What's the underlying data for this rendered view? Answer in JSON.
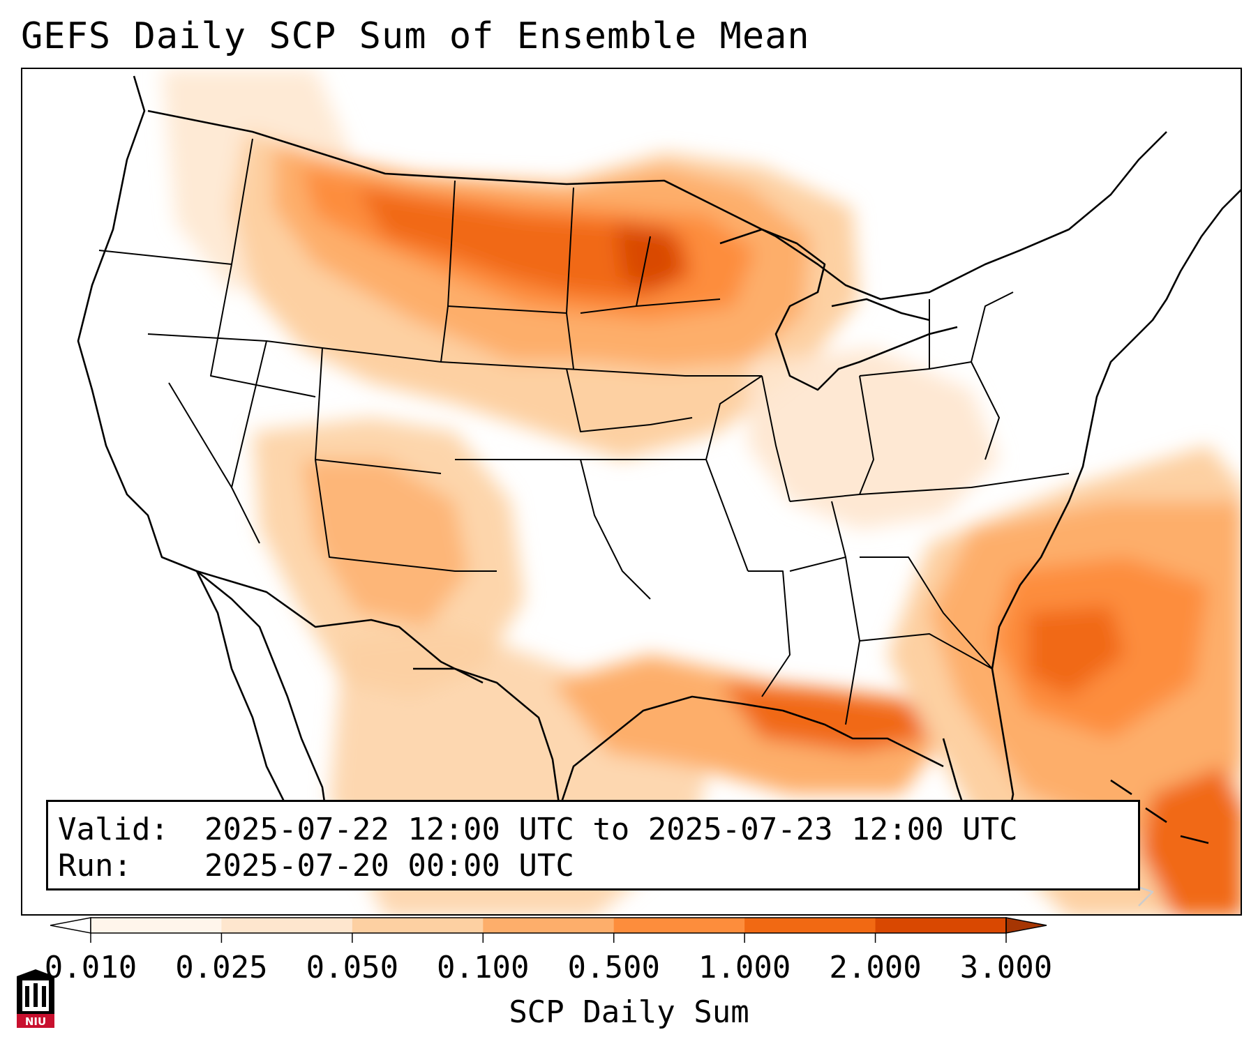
{
  "title": "GEFS Daily SCP Sum of Ensemble Mean",
  "info": {
    "valid_label": "Valid:",
    "valid_value": "2025-07-22 12:00 UTC to 2025-07-23 12:00 UTC",
    "run_label": "Run:",
    "run_value": "2025-07-20 00:00 UTC"
  },
  "colorbar": {
    "title": "SCP Daily Sum",
    "ticks": [
      "0.010",
      "0.025",
      "0.050",
      "0.100",
      "0.500",
      "1.000",
      "2.000",
      "3.000"
    ],
    "colors": [
      "#fff5eb",
      "#fee6ce",
      "#fdd0a2",
      "#fdae6b",
      "#fd8d3c",
      "#f16913",
      "#d94801"
    ],
    "under_color": "#ffffff",
    "over_color": "#a63603"
  },
  "logo": {
    "text": "NIU",
    "color": "#c8102e"
  },
  "colors": {
    "border": "#000000",
    "background": "#ffffff"
  }
}
